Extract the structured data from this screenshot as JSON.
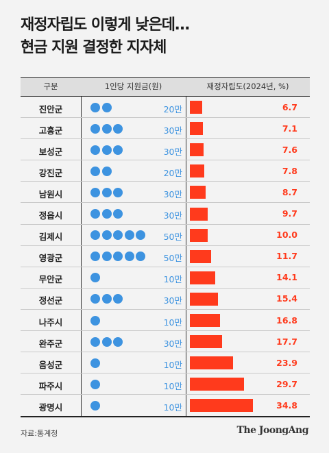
{
  "title": {
    "line1": "재정자립도 이렇게 낮은데…",
    "line2": "현금 지원 결정한 지자체"
  },
  "headers": {
    "region": "구분",
    "amount": "1인당 지원금(원)",
    "ratio": "재정자립도(2024년, %)"
  },
  "source": "자료:통계청",
  "logo": "The JoongAng",
  "colors": {
    "dot": "#3d93e0",
    "bar": "#ff3a1c",
    "amount_text": "#3d93e0",
    "value_text": "#ff3a1c"
  },
  "chart_data": {
    "type": "bar",
    "orientation": "horizontal",
    "categories": [
      "진안군",
      "고흥군",
      "보성군",
      "강진군",
      "남원시",
      "정읍시",
      "김제시",
      "영광군",
      "무안군",
      "정선군",
      "나주시",
      "완주군",
      "음성군",
      "파주시",
      "광명시"
    ],
    "series": [
      {
        "name": "1인당 지원금(원)",
        "values": [
          20,
          30,
          30,
          20,
          30,
          30,
          50,
          50,
          10,
          30,
          10,
          30,
          10,
          10,
          10
        ],
        "labels": [
          "20만",
          "30만",
          "30만",
          "20만",
          "30만",
          "30만",
          "50만",
          "50만",
          "10만",
          "30만",
          "10만",
          "30만",
          "10만",
          "10만",
          "10만"
        ]
      },
      {
        "name": "재정자립도(2024년, %)",
        "values": [
          6.7,
          7.1,
          7.6,
          7.8,
          8.7,
          9.7,
          10.0,
          11.7,
          14.1,
          15.4,
          16.8,
          17.7,
          23.9,
          29.7,
          34.8
        ],
        "labels": [
          "6.7",
          "7.1",
          "7.6",
          "7.8",
          "8.7",
          "9.7",
          "10.0",
          "11.7",
          "14.1",
          "15.4",
          "16.8",
          "17.7",
          "23.9",
          "29.7",
          "34.8"
        ]
      }
    ]
  }
}
